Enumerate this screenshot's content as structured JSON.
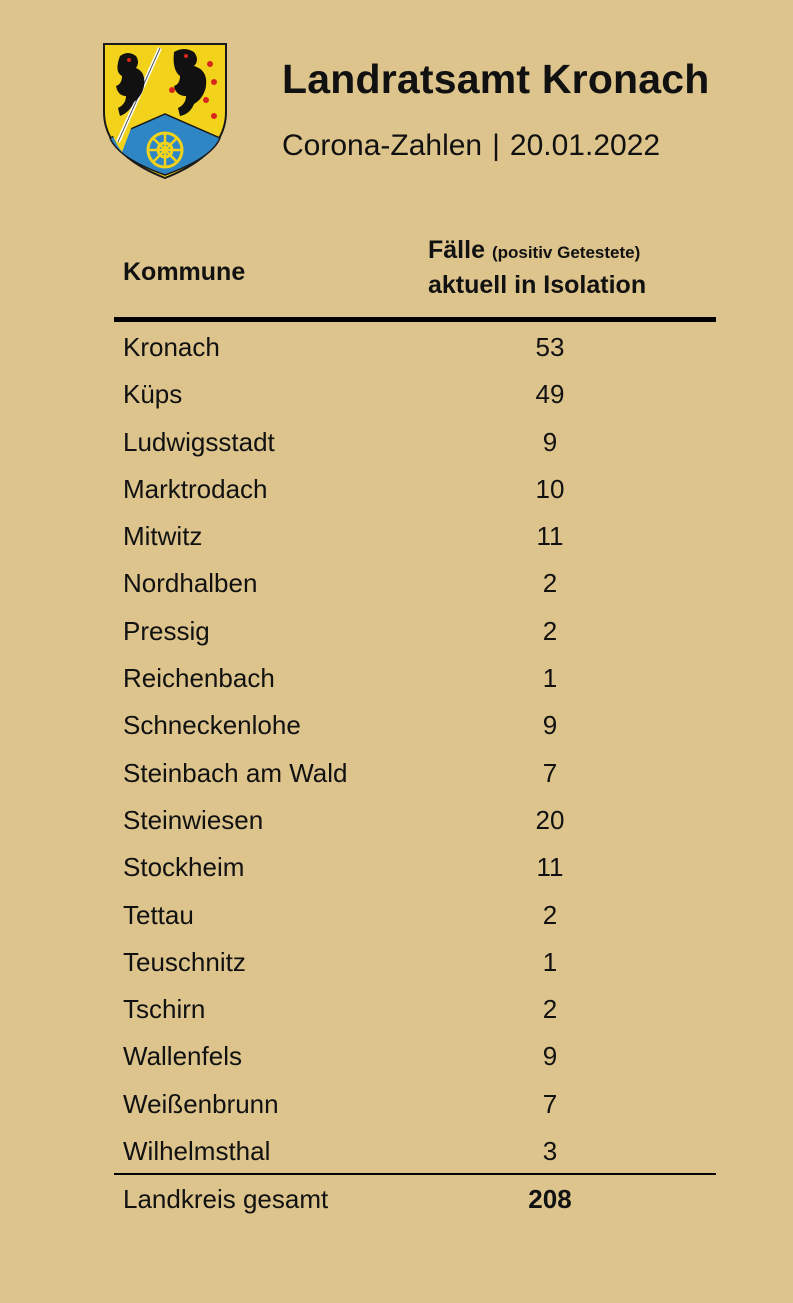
{
  "header": {
    "title": "Landratsamt Kronach",
    "subtitle_left": "Corona-Zahlen",
    "separator": "|",
    "subtitle_date": "20.01.2022",
    "crest_icon": "coat-of-arms-icon"
  },
  "table": {
    "col_kommune": "Kommune",
    "col_faelle_main": "Fälle",
    "col_faelle_small": "(positiv Getestete)",
    "col_faelle_line2": "aktuell in Isolation",
    "rows": [
      {
        "name": "Kronach",
        "value": "53"
      },
      {
        "name": "Küps",
        "value": "49"
      },
      {
        "name": "Ludwigsstadt",
        "value": "9"
      },
      {
        "name": "Marktrodach",
        "value": "10"
      },
      {
        "name": "Mitwitz",
        "value": "11"
      },
      {
        "name": "Nordhalben",
        "value": "2"
      },
      {
        "name": "Pressig",
        "value": "2"
      },
      {
        "name": "Reichenbach",
        "value": "1"
      },
      {
        "name": "Schneckenlohe",
        "value": "9"
      },
      {
        "name": "Steinbach am Wald",
        "value": "7"
      },
      {
        "name": "Steinwiesen",
        "value": "20"
      },
      {
        "name": "Stockheim",
        "value": "11"
      },
      {
        "name": "Tettau",
        "value": "2"
      },
      {
        "name": "Teuschnitz",
        "value": "1"
      },
      {
        "name": "Tschirn",
        "value": "2"
      },
      {
        "name": "Wallenfels",
        "value": "9"
      },
      {
        "name": "Weißenbrunn",
        "value": "7"
      },
      {
        "name": "Wilhelmsthal",
        "value": "3"
      }
    ],
    "total_label": "Landkreis gesamt",
    "total_value": "208"
  },
  "colors": {
    "background": "#dcc48c",
    "crest_gold": "#f2d21a",
    "crest_blue": "#2f86c4",
    "crest_red": "#d8261c"
  }
}
